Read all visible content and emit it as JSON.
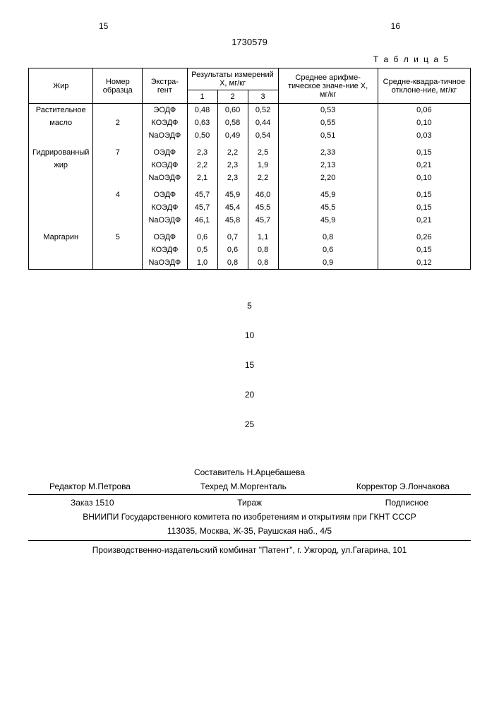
{
  "page_left": "15",
  "page_right": "16",
  "doc_number": "1730579",
  "table_caption": "Т а б л и ц а 5",
  "headers": {
    "fat": "Жир",
    "sample_no": "Номер образца",
    "extractant": "Экстра-гент",
    "results_group": "Результаты измерений X, мг/кг",
    "r1": "1",
    "r2": "2",
    "r3": "3",
    "mean": "Среднее арифме-тическое значе-ние X, мг/кг",
    "std": "Средне-квадра-тичное отклоне-ние, мг/кг"
  },
  "rows": [
    {
      "fat": "Растительное",
      "sample": "",
      "ext": "ЭОДФ",
      "v1": "0,48",
      "v2": "0,60",
      "v3": "0,52",
      "mean": "0,53",
      "std": "0,06"
    },
    {
      "fat": "масло",
      "sample": "2",
      "ext": "КОЭДФ",
      "v1": "0,63",
      "v2": "0,58",
      "v3": "0,44",
      "mean": "0,55",
      "std": "0,10"
    },
    {
      "fat": "",
      "sample": "",
      "ext": "NaОЭДФ",
      "v1": "0,50",
      "v2": "0,49",
      "v3": "0,54",
      "mean": "0,51",
      "std": "0,03"
    },
    {
      "fat": "",
      "sample": "",
      "ext": "",
      "v1": "",
      "v2": "",
      "v3": "",
      "mean": "",
      "std": ""
    },
    {
      "fat": "Гидрированный",
      "sample": "7",
      "ext": "ОЭДФ",
      "v1": "2,3",
      "v2": "2,2",
      "v3": "2,5",
      "mean": "2,33",
      "std": "0,15"
    },
    {
      "fat": "жир",
      "sample": "",
      "ext": "КОЭДФ",
      "v1": "2,2",
      "v2": "2,3",
      "v3": "1,9",
      "mean": "2,13",
      "std": "0,21"
    },
    {
      "fat": "",
      "sample": "",
      "ext": "NaОЭДФ",
      "v1": "2,1",
      "v2": "2,3",
      "v3": "2,2",
      "mean": "2,20",
      "std": "0,10"
    },
    {
      "fat": "",
      "sample": "",
      "ext": "",
      "v1": "",
      "v2": "",
      "v3": "",
      "mean": "",
      "std": ""
    },
    {
      "fat": "",
      "sample": "4",
      "ext": "ОЭДФ",
      "v1": "45,7",
      "v2": "45,9",
      "v3": "46,0",
      "mean": "45,9",
      "std": "0,15"
    },
    {
      "fat": "",
      "sample": "",
      "ext": "КОЭДФ",
      "v1": "45,7",
      "v2": "45,4",
      "v3": "45,5",
      "mean": "45,5",
      "std": "0,15"
    },
    {
      "fat": "",
      "sample": "",
      "ext": "NaОЭДФ",
      "v1": "46,1",
      "v2": "45,8",
      "v3": "45,7",
      "mean": "45,9",
      "std": "0,21"
    },
    {
      "fat": "",
      "sample": "",
      "ext": "",
      "v1": "",
      "v2": "",
      "v3": "",
      "mean": "",
      "std": ""
    },
    {
      "fat": "Маргарин",
      "sample": "5",
      "ext": "ОЭДФ",
      "v1": "0,6",
      "v2": "0,7",
      "v3": "1,1",
      "mean": "0,8",
      "std": "0,26"
    },
    {
      "fat": "",
      "sample": "",
      "ext": "КОЭДФ",
      "v1": "0,5",
      "v2": "0,6",
      "v3": "0,8",
      "mean": "0,6",
      "std": "0,15"
    },
    {
      "fat": "",
      "sample": "",
      "ext": "NaОЭДФ",
      "v1": "1,0",
      "v2": "0,8",
      "v3": "0,8",
      "mean": "0,9",
      "std": "0,12"
    }
  ],
  "line_numbers": [
    "5",
    "10",
    "15",
    "20",
    "25"
  ],
  "credits": {
    "compiler": "Составитель Н.Арцебашева",
    "editor": "Редактор М.Петрова",
    "techred": "Техред М.Моргенталь",
    "corrector": "Корректор Э.Лончакова"
  },
  "order": {
    "order_no": "Заказ 1510",
    "tirazh": "Тираж",
    "sub": "Подписное"
  },
  "vniipi1": "ВНИИПИ Государственного комитета по изобретениям и открытиям при ГКНТ СССР",
  "vniipi2": "113035, Москва, Ж-35, Раушская наб., 4/5",
  "printer": "Производственно-издательский комбинат \"Патент\", г. Ужгород, ул.Гагарина, 101"
}
